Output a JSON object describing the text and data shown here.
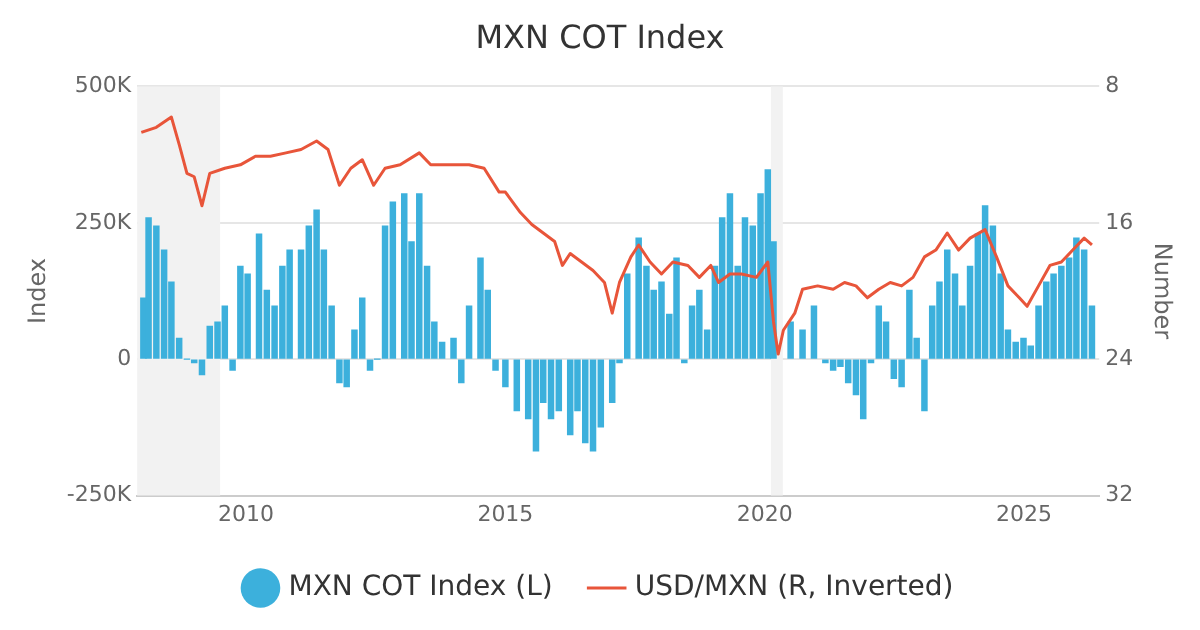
{
  "chart_data": {
    "type": "bar",
    "title": "MXN COT Index",
    "ylabel": "Index",
    "y2label": "Number",
    "xlim": [
      2007.9,
      2026.45
    ],
    "xticks": [
      2010,
      2015,
      2020,
      2025
    ],
    "ylim": [
      -250000,
      500000
    ],
    "yticks": [
      {
        "value": -250000,
        "label": "-250K"
      },
      {
        "value": 0,
        "label": "0"
      },
      {
        "value": 250000,
        "label": "250K"
      },
      {
        "value": 500000,
        "label": "500K"
      }
    ],
    "y2lim": [
      32,
      8
    ],
    "y2ticks": [
      8,
      16,
      24,
      32
    ],
    "grid": "y",
    "legend": "bottom",
    "bands": [
      {
        "axis": "x",
        "from": 2007.9,
        "to": 2009.5,
        "color": "#f2f2f2"
      },
      {
        "axis": "x",
        "from": 2020.12,
        "to": 2020.35,
        "color": "#f2f2f2"
      }
    ],
    "series": [
      {
        "name": "MXN COT Index (L)",
        "color": "#3cb0dc",
        "x": [
          2008.02,
          2008.12,
          2008.27,
          2008.42,
          2008.56,
          2008.71,
          2008.86,
          2009.0,
          2009.15,
          2009.3,
          2009.45,
          2009.59,
          2009.74,
          2009.89,
          2010.03,
          2010.25,
          2010.4,
          2010.55,
          2010.7,
          2010.84,
          2011.06,
          2011.21,
          2011.36,
          2011.5,
          2011.65,
          2011.8,
          2011.94,
          2012.09,
          2012.24,
          2012.39,
          2012.53,
          2012.68,
          2012.83,
          2013.05,
          2013.19,
          2013.34,
          2013.49,
          2013.63,
          2013.78,
          2014.0,
          2014.15,
          2014.3,
          2014.52,
          2014.66,
          2014.81,
          2015.0,
          2015.22,
          2015.44,
          2015.59,
          2015.73,
          2015.88,
          2016.03,
          2016.25,
          2016.39,
          2016.54,
          2016.69,
          2016.84,
          2017.06,
          2017.2,
          2017.35,
          2017.57,
          2017.72,
          2017.86,
          2018.01,
          2018.16,
          2018.3,
          2018.45,
          2018.6,
          2018.74,
          2018.89,
          2019.04,
          2019.18,
          2019.33,
          2019.48,
          2019.62,
          2019.77,
          2019.92,
          2020.06,
          2020.17,
          2020.28,
          2020.5,
          2020.73,
          2020.95,
          2021.17,
          2021.32,
          2021.46,
          2021.61,
          2021.76,
          2021.9,
          2022.05,
          2022.2,
          2022.34,
          2022.49,
          2022.64,
          2022.79,
          2022.93,
          2023.08,
          2023.23,
          2023.37,
          2023.52,
          2023.67,
          2023.81,
          2023.96,
          2024.11,
          2024.25,
          2024.4,
          2024.55,
          2024.69,
          2024.84,
          2024.99,
          2025.13,
          2025.28,
          2025.43,
          2025.57,
          2025.72,
          2025.87,
          2026.01,
          2026.16,
          2026.31
        ],
        "values": [
          112000,
          259000,
          244000,
          200000,
          141000,
          38000,
          0,
          -6000,
          -28000,
          60000,
          68000,
          97000,
          -20000,
          170000,
          156000,
          229000,
          126000,
          97000,
          170000,
          200000,
          200000,
          244000,
          273000,
          200000,
          97000,
          -43000,
          -50000,
          53000,
          112000,
          -20000,
          0,
          244000,
          288000,
          303000,
          215000,
          303000,
          170000,
          68000,
          31000,
          38000,
          -43000,
          97000,
          185000,
          126000,
          -20000,
          -50000,
          -94000,
          -109000,
          -168000,
          -79000,
          -109000,
          -94000,
          -138000,
          -94000,
          -153000,
          -168000,
          -124000,
          -79000,
          -6000,
          156000,
          222000,
          170000,
          126000,
          141000,
          82000,
          185000,
          -6000,
          97000,
          126000,
          53000,
          170000,
          259000,
          303000,
          170000,
          259000,
          244000,
          303000,
          347000,
          215000,
          null,
          68000,
          53000,
          97000,
          -6000,
          -20000,
          -13000,
          -43000,
          -65000,
          -109000,
          -6000,
          97000,
          68000,
          -35000,
          -50000,
          126000,
          38000,
          -94000,
          97000,
          141000,
          200000,
          156000,
          97000,
          170000,
          229000,
          281000,
          244000,
          156000,
          53000,
          31000,
          38000,
          24000,
          97000,
          141000,
          156000,
          170000,
          185000,
          222000,
          200000,
          97000
        ]
      },
      {
        "name": "USD/MXN (R, Inverted)",
        "type": "line",
        "axis": "y2",
        "color": "#e8553a",
        "marker": "none",
        "x": [
          2007.98,
          2008.27,
          2008.56,
          2008.71,
          2008.86,
          2009.0,
          2009.15,
          2009.3,
          2009.59,
          2009.89,
          2010.18,
          2010.47,
          2010.77,
          2011.06,
          2011.36,
          2011.58,
          2011.8,
          2012.02,
          2012.24,
          2012.46,
          2012.68,
          2012.97,
          2013.34,
          2013.56,
          2013.86,
          2014.3,
          2014.59,
          2014.88,
          2015.0,
          2015.29,
          2015.51,
          2015.73,
          2015.95,
          2016.1,
          2016.25,
          2016.47,
          2016.69,
          2016.91,
          2017.06,
          2017.2,
          2017.42,
          2017.57,
          2017.79,
          2018.01,
          2018.23,
          2018.52,
          2018.74,
          2018.96,
          2019.11,
          2019.33,
          2019.55,
          2019.84,
          2020.06,
          2020.17,
          2020.26,
          2020.36,
          2020.58,
          2020.73,
          2021.02,
          2021.32,
          2021.54,
          2021.76,
          2021.98,
          2022.2,
          2022.42,
          2022.64,
          2022.86,
          2023.08,
          2023.3,
          2023.52,
          2023.74,
          2023.96,
          2024.25,
          2024.47,
          2024.69,
          2024.91,
          2025.06,
          2025.28,
          2025.5,
          2025.72,
          2025.94,
          2026.16,
          2026.31
        ],
        "values": [
          10.7,
          10.4,
          9.8,
          11.4,
          13.1,
          13.3,
          15.0,
          13.1,
          12.8,
          12.6,
          12.1,
          12.1,
          11.9,
          11.7,
          11.2,
          11.7,
          13.8,
          12.8,
          12.3,
          13.8,
          12.8,
          12.6,
          11.9,
          12.6,
          12.6,
          12.6,
          12.8,
          14.2,
          14.2,
          15.4,
          16.1,
          16.6,
          17.1,
          18.5,
          17.8,
          18.3,
          18.8,
          19.5,
          21.3,
          19.5,
          18.0,
          17.3,
          18.3,
          19.0,
          18.3,
          18.5,
          19.2,
          18.5,
          19.5,
          19.0,
          19.0,
          19.2,
          18.3,
          21.8,
          23.7,
          22.3,
          21.3,
          19.9,
          19.7,
          19.9,
          19.5,
          19.7,
          20.4,
          19.9,
          19.5,
          19.7,
          19.2,
          18.0,
          17.6,
          16.6,
          17.6,
          16.9,
          16.4,
          18.0,
          19.7,
          20.4,
          20.9,
          19.7,
          18.5,
          18.3,
          17.6,
          16.9,
          17.3
        ]
      }
    ]
  }
}
